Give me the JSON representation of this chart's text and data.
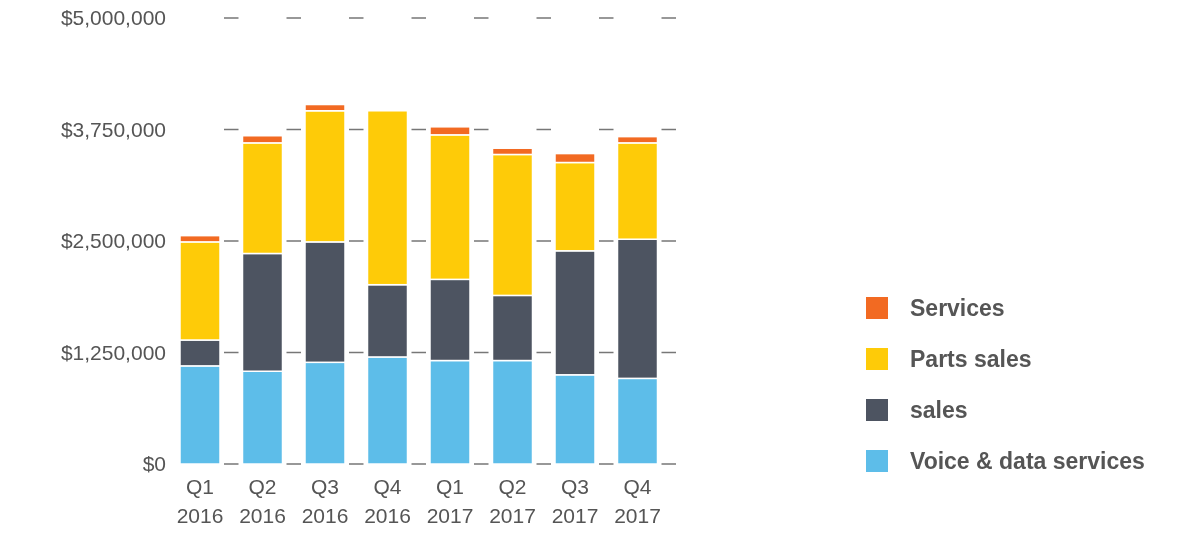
{
  "chart_data": {
    "type": "bar",
    "stacked": true,
    "categories": [
      "Q1 2016",
      "Q2 2016",
      "Q3 2016",
      "Q4 2016",
      "Q1 2017",
      "Q2 2017",
      "Q3 2017",
      "Q4 2017"
    ],
    "series": [
      {
        "name": "Voice & data services",
        "color": "#5dbde9",
        "values": [
          1100000,
          1040000,
          1140000,
          1200000,
          1160000,
          1160000,
          1000000,
          960000
        ]
      },
      {
        "name": "sales",
        "color": "#4d5461",
        "values": [
          290000,
          1320000,
          1350000,
          810000,
          910000,
          730000,
          1390000,
          1560000
        ]
      },
      {
        "name": "Parts sales",
        "color": "#fecb08",
        "values": [
          1100000,
          1240000,
          1470000,
          1950000,
          1620000,
          1580000,
          990000,
          1080000
        ]
      },
      {
        "name": "Services",
        "color": "#f26a22",
        "values": [
          70000,
          80000,
          70000,
          0,
          90000,
          70000,
          100000,
          70000
        ]
      }
    ],
    "ylim": [
      0,
      5000000
    ],
    "yticks": [
      {
        "value": 0,
        "label": "$0"
      },
      {
        "value": 1250000,
        "label": "$1,250,000"
      },
      {
        "value": 2500000,
        "label": "$2,500,000"
      },
      {
        "value": 3750000,
        "label": "$3,750,000"
      },
      {
        "value": 5000000,
        "label": "$5,000,000"
      }
    ],
    "grid": "y",
    "legend": "right"
  }
}
